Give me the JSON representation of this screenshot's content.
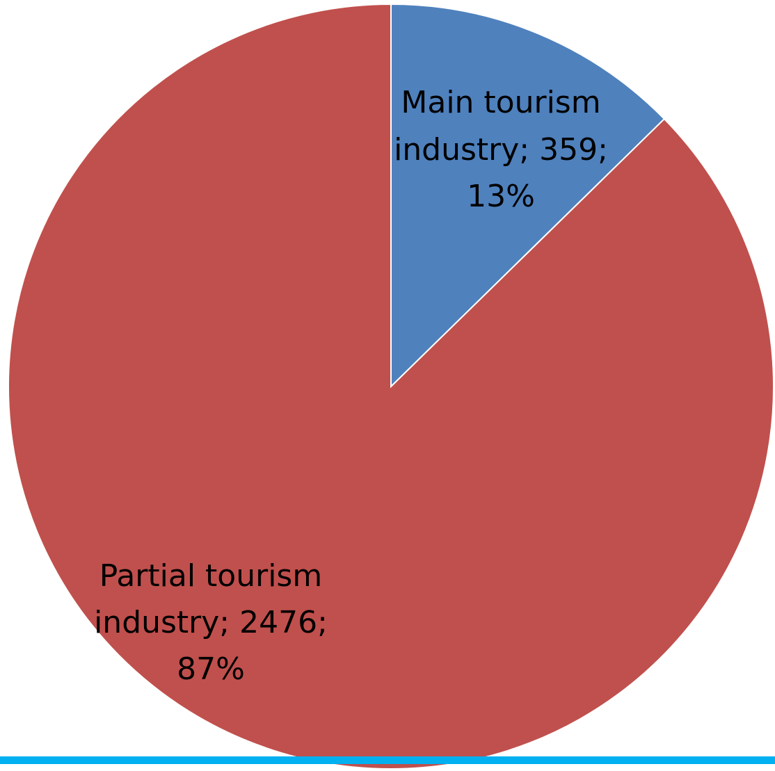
{
  "chart_data": {
    "type": "pie",
    "title": "",
    "slices": [
      {
        "name": "Main tourism industry",
        "value": 359,
        "percent": "13%",
        "color": "#4F81BD",
        "label_lines": [
          "Main tourism",
          "industry; 359;",
          "13%"
        ]
      },
      {
        "name": "Partial tourism industry",
        "value": 2476,
        "percent": "87%",
        "color": "#C0504D",
        "label_lines": [
          "Partial tourism",
          "industry; 2476;",
          "87%"
        ]
      }
    ],
    "start_angle": "12 o'clock",
    "direction": "clockwise",
    "legend": "none"
  },
  "colors": {
    "bottom_rule": "#00B0F0"
  }
}
